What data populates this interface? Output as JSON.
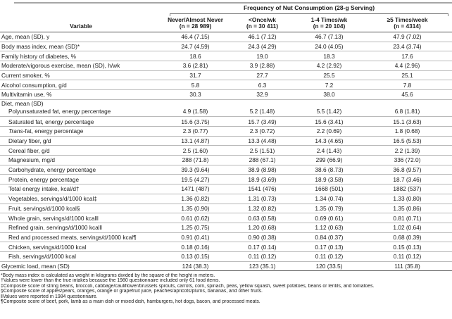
{
  "table": {
    "spanner": "Frequency of Nut Consumption (28-g Serving)",
    "variable_header": "Variable",
    "columns": [
      {
        "label": "Never/Almost Never",
        "n": "(n = 28 989)"
      },
      {
        "label": "<Once/wk",
        "n": "(n = 30 411)"
      },
      {
        "label": "1-4 Times/wk",
        "n": "(n = 20 104)"
      },
      {
        "label": "≥5 Times/week",
        "n": "(n = 4314)"
      }
    ],
    "rows": [
      {
        "label": "Age, mean (SD), y",
        "indent": 0,
        "values": [
          "46.4 (7.15)",
          "46.1 (7.12)",
          "46.7 (7.13)",
          "47.9 (7.02)"
        ]
      },
      {
        "label": "Body mass index, mean (SD)*",
        "indent": 0,
        "values": [
          "24.7 (4.59)",
          "24.3 (4.29)",
          "24.0 (4.05)",
          "23.4 (3.74)"
        ]
      },
      {
        "label": "Family history of diabetes, %",
        "indent": 0,
        "values": [
          "18.6",
          "19.0",
          "18.3",
          "17.6"
        ]
      },
      {
        "label": "Moderate/vigorous exercise, mean (SD), h/wk",
        "indent": 0,
        "values": [
          "3.6 (2.81)",
          "3.9 (2.88)",
          "4.2 (2.92)",
          "4.4 (2.96)"
        ]
      },
      {
        "label": "Current smoker, %",
        "indent": 0,
        "values": [
          "31.7",
          "27.7",
          "25.5",
          "25.1"
        ]
      },
      {
        "label": "Alcohol consumption, g/d",
        "indent": 0,
        "values": [
          "5.8",
          "6.3",
          "7.2",
          "7.8"
        ]
      },
      {
        "label": "Multivitamin use, %",
        "indent": 0,
        "values": [
          "30.3",
          "32.9",
          "38.0",
          "45.6"
        ]
      },
      {
        "label": "Polyunsaturated fat, energy percentage",
        "indent": 1,
        "section": "Diet, mean (SD)",
        "values": [
          "4.9 (1.58)",
          "5.2 (1.48)",
          "5.5 (1.42)",
          "6.8 (1.81)"
        ]
      },
      {
        "label": "Saturated fat, energy percentage",
        "indent": 1,
        "values": [
          "15.6 (3.75)",
          "15.7 (3.49)",
          "15.6 (3.41)",
          "15.1 (3.63)"
        ]
      },
      {
        "label": "Trans-fat, energy percentage",
        "indent": 1,
        "italic_prefix": "Trans",
        "values": [
          "2.3 (0.77)",
          "2.3 (0.72)",
          "2.2 (0.69)",
          "1.8 (0.68)"
        ]
      },
      {
        "label": "Dietary fiber, g/d",
        "indent": 1,
        "values": [
          "13.1 (4.87)",
          "13.3 (4.48)",
          "14.3 (4.65)",
          "16.5 (5.53)"
        ]
      },
      {
        "label": "Cereal fiber, g/d",
        "indent": 1,
        "values": [
          "2.5 (1.60)",
          "2.5 (1.51)",
          "2.4 (1.43)",
          "2.2 (1.39)"
        ]
      },
      {
        "label": "Magnesium, mg/d",
        "indent": 1,
        "values": [
          "288 (71.8)",
          "288 (67.1)",
          "299 (66.9)",
          "336 (72.0)"
        ]
      },
      {
        "label": "Carbohydrate, energy percentage",
        "indent": 1,
        "values": [
          "39.3 (9.64)",
          "38.9 (8.98)",
          "38.6 (8.73)",
          "36.8 (9.57)"
        ]
      },
      {
        "label": "Protein, energy percentage",
        "indent": 1,
        "values": [
          "19.5 (4.27)",
          "18.9 (3.69)",
          "18.9 (3.58)",
          "18.7 (3.46)"
        ]
      },
      {
        "label": "Total energy intake, kcal/d†",
        "indent": 1,
        "values": [
          "1471 (487)",
          "1541 (476)",
          "1668 (501)",
          "1882 (537)"
        ]
      },
      {
        "label": "Vegetables, servings/d/1000 kcal‡",
        "indent": 1,
        "values": [
          "1.36 (0.82)",
          "1.31 (0.73)",
          "1.34 (0.74)",
          "1.33 (0.80)"
        ]
      },
      {
        "label": "Fruit, servings/d/1000 kcal§",
        "indent": 1,
        "values": [
          "1.35 (0.90)",
          "1.32 (0.82)",
          "1.35 (0.79)",
          "1.35 (0.86)"
        ]
      },
      {
        "label": "Whole grain, servings/d/1000 kcal‖",
        "indent": 1,
        "values": [
          "0.61 (0.62)",
          "0.63 (0.58)",
          "0.69 (0.61)",
          "0.81 (0.71)"
        ]
      },
      {
        "label": "Refined grain, servings/d/1000 kcal‖",
        "indent": 1,
        "values": [
          "1.25 (0.75)",
          "1.20 (0.68)",
          "1.12 (0.63)",
          "1.02 (0.64)"
        ]
      },
      {
        "label": "Red and processed meats, servings/d/1000 kcal¶",
        "indent": 1,
        "values": [
          "0.91 (0.41)",
          "0.90 (0.38)",
          "0.84 (0.37)",
          "0.68 (0.39)"
        ]
      },
      {
        "label": "Chicken, servings/d/1000 kcal",
        "indent": 1,
        "values": [
          "0.18 (0.16)",
          "0.17 (0.14)",
          "0.17 (0.13)",
          "0.15 (0.13)"
        ]
      },
      {
        "label": "Fish, servings/d/1000 kcal",
        "indent": 1,
        "values": [
          "0.13 (0.15)",
          "0.11 (0.12)",
          "0.11 (0.12)",
          "0.11 (0.12)"
        ]
      },
      {
        "label": "Glycemic load, mean (SD)",
        "indent": 0,
        "values": [
          "124 (38.3)",
          "123 (35.1)",
          "120 (33.5)",
          "111 (35.8)"
        ]
      }
    ],
    "footnotes": [
      "*Body mass index is calculated as weight in kilograms divided by the square of the height in meters.",
      "†Values were lower than the true intakes because the 1980 questionnaire included only 61 food items.",
      "‡Composite score of string beans, broccoli, cabbage/cauliflower/brussels sprouts, carrots, corn, spinach, peas, yellow squash, sweet potatoes, beans or lentils, and tomatoes.",
      "§Composite score of apples/pears, oranges, orange or grapefruit juice, peaches/apricots/plums, bananas, and other fruits.",
      "‖Values were reported in 1984 questionnaire.",
      "¶Composite score of beef, pork, lamb as a main dish or mixed dish, hamburgers, hot dogs, bacon, and processed meats."
    ]
  },
  "colors": {
    "rule_dark": "#555555",
    "rule_light": "#b9b9b9",
    "rule_top": "#a6a6a6",
    "text": "#1b1b1b",
    "background": "#ffffff"
  }
}
